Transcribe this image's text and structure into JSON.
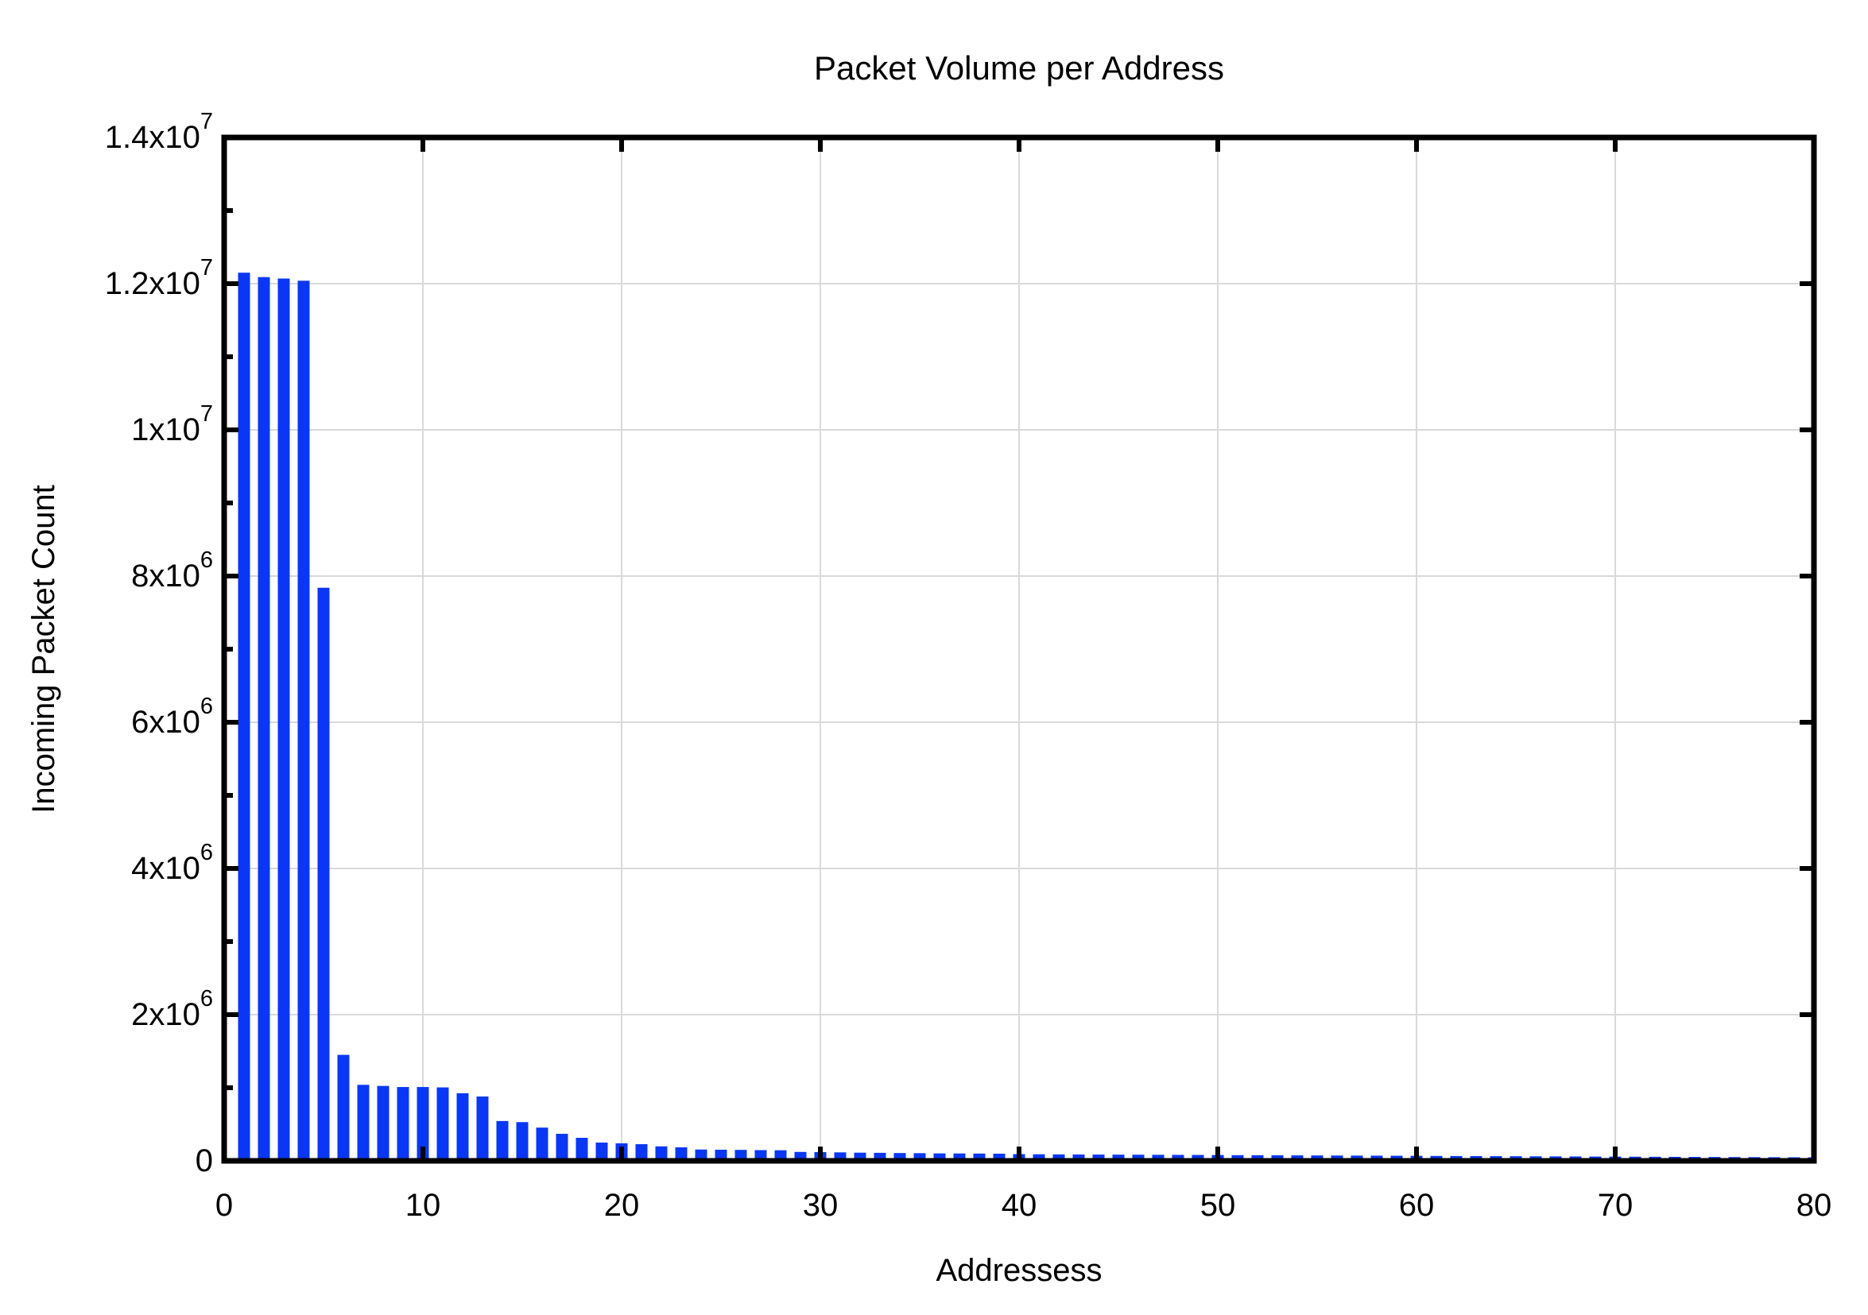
{
  "chart_data": {
    "type": "bar",
    "title": "Packet Volume per Address",
    "xlabel": "Addressess",
    "ylabel": "Incoming Packet Count",
    "xlim": [
      0,
      80
    ],
    "ylim": [
      0,
      14000000
    ],
    "grid": true,
    "legend": null,
    "bar_width_ratio": 0.6,
    "colors": {
      "bar": "#0a37f5",
      "grid": "#d9d9d9",
      "axis": "#000000",
      "background": "#ffffff"
    },
    "xticks": {
      "values": [
        0,
        10,
        20,
        30,
        40,
        50,
        60,
        70,
        80
      ],
      "labels": [
        "0",
        "10",
        "20",
        "30",
        "40",
        "50",
        "60",
        "70",
        "80"
      ]
    },
    "yticks": {
      "values": [
        0,
        2000000,
        4000000,
        6000000,
        8000000,
        10000000,
        12000000,
        14000000
      ],
      "labels": [
        "0",
        "2x10^6",
        "4x10^6",
        "6x10^6",
        "8x10^6",
        "1x10^7",
        "1.2x10^7",
        "1.4x10^7"
      ]
    },
    "y_minor_tick_step": 1000000,
    "x": [
      1,
      2,
      3,
      4,
      5,
      6,
      7,
      8,
      9,
      10,
      11,
      12,
      13,
      14,
      15,
      16,
      17,
      18,
      19,
      20,
      21,
      22,
      23,
      24,
      25,
      26,
      27,
      28,
      29,
      30,
      31,
      32,
      33,
      34,
      35,
      36,
      37,
      38,
      39,
      40,
      41,
      42,
      43,
      44,
      45,
      46,
      47,
      48,
      49,
      50,
      51,
      52,
      53,
      54,
      55,
      56,
      57,
      58,
      59,
      60,
      61,
      62,
      63,
      64,
      65,
      66,
      67,
      68,
      69,
      70,
      71,
      72,
      73,
      74,
      75,
      76,
      77,
      78,
      79,
      80
    ],
    "values": [
      12150000,
      12090000,
      12070000,
      12040000,
      7840000,
      1450000,
      1040000,
      1025000,
      1010000,
      1010000,
      1005000,
      925000,
      880000,
      545000,
      530000,
      455000,
      370000,
      315000,
      250000,
      240000,
      228000,
      198000,
      185000,
      155000,
      152000,
      150000,
      147000,
      145000,
      122000,
      120000,
      116000,
      112000,
      110000,
      107000,
      105000,
      102000,
      101000,
      100000,
      98000,
      92000,
      90000,
      88000,
      87000,
      86000,
      85000,
      84000,
      83000,
      82000,
      81000,
      80000,
      78000,
      77000,
      76000,
      75000,
      74000,
      73000,
      72000,
      71000,
      70000,
      69000,
      67000,
      66000,
      65000,
      64000,
      63000,
      62000,
      61000,
      60000,
      59000,
      58000,
      57000,
      56000,
      55000,
      54000,
      53000,
      52000,
      51000,
      50000,
      49000,
      48000
    ]
  }
}
